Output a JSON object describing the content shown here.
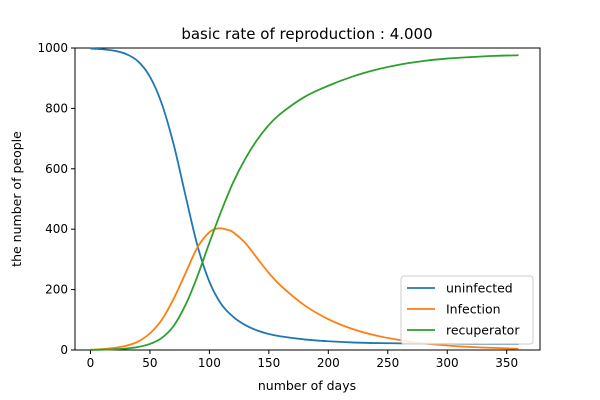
{
  "chart_data": {
    "type": "line",
    "title": "basic rate of reproduction : 4.000",
    "xlabel": "number of days",
    "ylabel": "the number of people",
    "xlim": [
      -13,
      378
    ],
    "ylim": [
      0,
      1000
    ],
    "xticks": [
      0,
      50,
      100,
      150,
      200,
      250,
      300,
      350
    ],
    "yticks": [
      0,
      200,
      400,
      600,
      800,
      1000
    ],
    "grid": false,
    "legend_position": "bottom-right",
    "series": [
      {
        "name": "uninfected",
        "color": "#1f77b4",
        "x": [
          0,
          10,
          20,
          30,
          40,
          50,
          60,
          70,
          80,
          90,
          100,
          110,
          120,
          130,
          140,
          150,
          160,
          180,
          200,
          220,
          240,
          260,
          280,
          300,
          320,
          340,
          360
        ],
        "y": [
          998,
          996,
          991,
          980,
          956,
          905,
          815,
          680,
          510,
          345,
          226,
          152,
          110,
          83,
          65,
          53,
          45,
          35,
          29,
          25,
          23,
          22,
          21,
          21,
          20,
          20,
          20
        ]
      },
      {
        "name": "Infection",
        "color": "#ff7f0e",
        "x": [
          0,
          10,
          20,
          30,
          40,
          50,
          60,
          70,
          80,
          90,
          100,
          108,
          115,
          120,
          130,
          140,
          150,
          160,
          180,
          200,
          220,
          240,
          260,
          280,
          300,
          320,
          340,
          360
        ],
        "y": [
          1,
          3,
          7,
          14,
          28,
          55,
          100,
          170,
          255,
          340,
          390,
          403,
          398,
          390,
          355,
          305,
          255,
          213,
          148,
          102,
          70,
          48,
          33,
          22,
          15,
          10,
          7,
          4
        ]
      },
      {
        "name": "recuperator",
        "color": "#2ca02c",
        "x": [
          0,
          10,
          20,
          30,
          40,
          50,
          60,
          70,
          80,
          90,
          100,
          110,
          120,
          130,
          140,
          150,
          160,
          180,
          200,
          220,
          240,
          260,
          280,
          300,
          320,
          340,
          360
        ],
        "y": [
          0,
          1,
          2,
          5,
          10,
          20,
          40,
          80,
          150,
          245,
          355,
          460,
          555,
          632,
          695,
          745,
          783,
          838,
          875,
          905,
          928,
          945,
          957,
          965,
          970,
          974,
          976
        ]
      }
    ]
  }
}
